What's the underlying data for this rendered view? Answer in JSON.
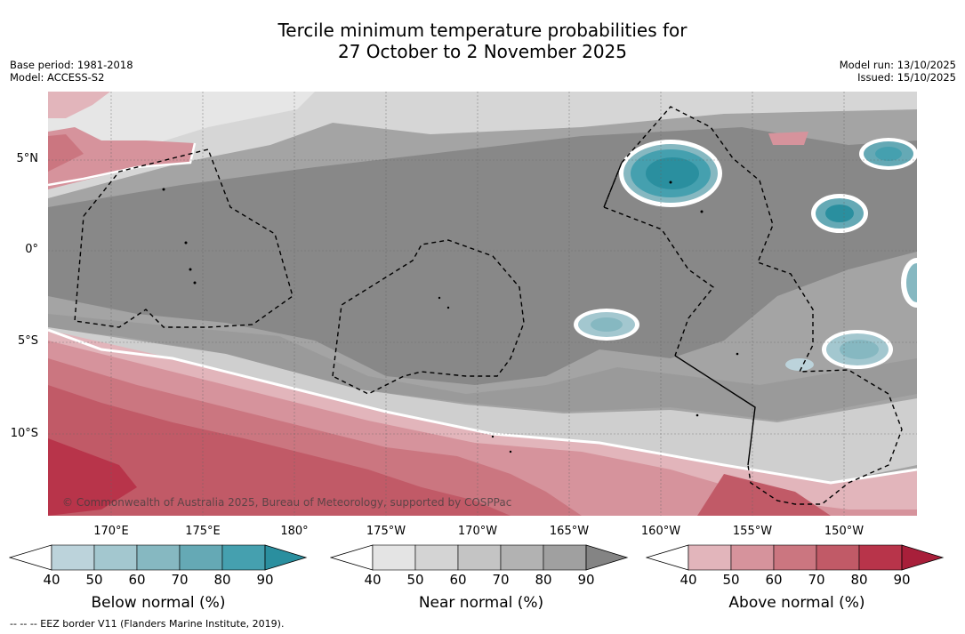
{
  "header": {
    "title_line1": "Tercile minimum temperature probabilities for",
    "title_line2": "27 October to 2 November 2025",
    "base_period": "Base period: 1981-2018",
    "model": "Model: ACCESS-S2",
    "model_run": "Model run: 13/10/2025",
    "issued": "Issued: 15/10/2025"
  },
  "map": {
    "lat_labels": [
      "5°N",
      "0°",
      "5°S",
      "10°S"
    ],
    "lon_labels": [
      "170°E",
      "175°E",
      "180°",
      "175°W",
      "170°W",
      "165°W",
      "160°W",
      "155°W",
      "150°W"
    ],
    "copyright": "© Commonwealth of Australia 2025, Bureau of Meteorology, supported by COSPPac"
  },
  "colorbars": {
    "below": {
      "title": "Below normal (%)",
      "ticks": [
        "40",
        "50",
        "60",
        "70",
        "80",
        "90"
      ],
      "colors": [
        "#ffffff",
        "#bcd3db",
        "#a3c7cf",
        "#86b8c1",
        "#65a9b5",
        "#45a0af",
        "#2a8f9f"
      ]
    },
    "near": {
      "title": "Near normal (%)",
      "ticks": [
        "40",
        "50",
        "60",
        "70",
        "80",
        "90"
      ],
      "colors": [
        "#ffffff",
        "#e4e4e4",
        "#d4d4d4",
        "#c4c4c4",
        "#b2b2b2",
        "#a0a0a0",
        "#848484"
      ]
    },
    "above": {
      "title": "Above normal (%)",
      "ticks": [
        "40",
        "50",
        "60",
        "70",
        "80",
        "90"
      ],
      "colors": [
        "#ffffff",
        "#e2b5bb",
        "#d6939c",
        "#cb7680",
        "#c15a67",
        "#b8344a",
        "#a81f3a"
      ]
    }
  },
  "footer": {
    "eez": "--  --  -- EEZ border V11 (Flanders Marine Institute, 2019)."
  }
}
